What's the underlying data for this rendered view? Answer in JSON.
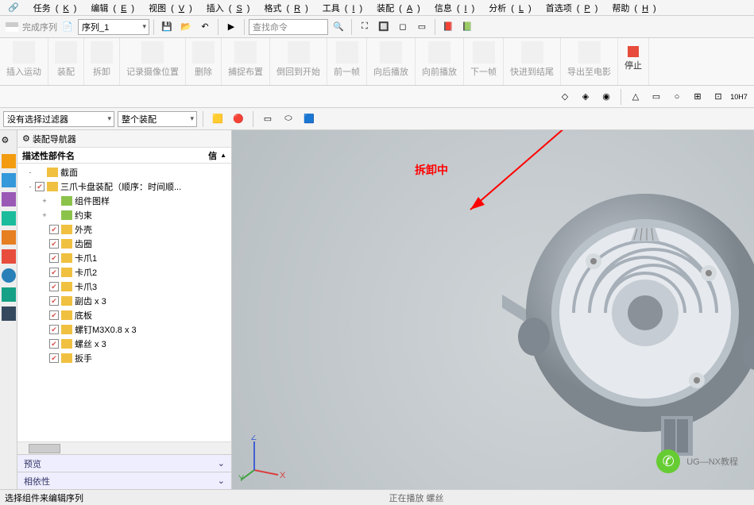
{
  "menu": {
    "items": [
      {
        "label": "任务",
        "key": "K"
      },
      {
        "label": "编辑",
        "key": "E"
      },
      {
        "label": "视图",
        "key": "V"
      },
      {
        "label": "插入",
        "key": "S"
      },
      {
        "label": "格式",
        "key": "R"
      },
      {
        "label": "工具",
        "key": "I"
      },
      {
        "label": "装配",
        "key": "A"
      },
      {
        "label": "信息",
        "key": "I"
      },
      {
        "label": "分析",
        "key": "L"
      },
      {
        "label": "首选项",
        "key": "P"
      },
      {
        "label": "帮助",
        "key": "H"
      }
    ]
  },
  "toolbar1": {
    "complete_seq": "完成序列",
    "sequence_combo": "序列_1",
    "search_placeholder": "查找命令"
  },
  "ribbon": {
    "groups": [
      {
        "label": "插入运动"
      },
      {
        "label": "装配"
      },
      {
        "label": "拆卸"
      },
      {
        "label": "记录摄像位置"
      },
      {
        "label": "删除"
      },
      {
        "label": "捕捉布置"
      },
      {
        "label": "倒回到开始"
      },
      {
        "label": "前一帧"
      },
      {
        "label": "向后播放"
      },
      {
        "label": "向前播放"
      },
      {
        "label": "下一帧"
      },
      {
        "label": "快进到结尾"
      },
      {
        "label": "导出至电影"
      },
      {
        "label": "停止"
      }
    ]
  },
  "toolbar3": {
    "filter_combo": "没有选择过滤器",
    "scope_combo": "整个装配"
  },
  "navigator": {
    "title": "装配导航器",
    "header": "描述性部件名",
    "header_right": "信",
    "nodes": [
      {
        "indent": 0,
        "exp": "-",
        "chk": false,
        "icon": "y",
        "label": "截面"
      },
      {
        "indent": 0,
        "exp": "-",
        "chk": true,
        "icon": "y",
        "label": "三爪卡盘装配（顺序：时间顺..."
      },
      {
        "indent": 1,
        "exp": "+",
        "chk": false,
        "icon": "g",
        "label": "组件图样"
      },
      {
        "indent": 1,
        "exp": "+",
        "chk": false,
        "icon": "g",
        "label": "约束"
      },
      {
        "indent": 1,
        "exp": "",
        "chk": true,
        "icon": "y",
        "label": "外壳"
      },
      {
        "indent": 1,
        "exp": "",
        "chk": true,
        "icon": "y",
        "label": "齿圈"
      },
      {
        "indent": 1,
        "exp": "",
        "chk": true,
        "icon": "y",
        "label": "卡爪1"
      },
      {
        "indent": 1,
        "exp": "",
        "chk": true,
        "icon": "y",
        "label": "卡爪2"
      },
      {
        "indent": 1,
        "exp": "",
        "chk": true,
        "icon": "y",
        "label": "卡爪3"
      },
      {
        "indent": 1,
        "exp": "",
        "chk": true,
        "icon": "y",
        "label": "副齿 x 3"
      },
      {
        "indent": 1,
        "exp": "",
        "chk": true,
        "icon": "y",
        "label": "底板"
      },
      {
        "indent": 1,
        "exp": "",
        "chk": true,
        "icon": "y",
        "label": "螺钉M3X0.8 x 3"
      },
      {
        "indent": 1,
        "exp": "",
        "chk": true,
        "icon": "y",
        "label": "螺丝 x 3"
      },
      {
        "indent": 1,
        "exp": "",
        "chk": true,
        "icon": "y",
        "label": "扳手"
      }
    ],
    "preview": "预览",
    "dependency": "相依性"
  },
  "viewport": {
    "annotation": "拆卸中",
    "csys": {
      "x": "X",
      "y": "Y",
      "z": "Z"
    },
    "colors": {
      "annotation": "#ff0000",
      "chuck_body": "#9aa3ac",
      "chuck_spiral": "#dfe3e7",
      "chuck_screw": "#c9d0d6",
      "x_axis": "#d94040",
      "y_axis": "#40a040",
      "z_axis": "#4060d0"
    }
  },
  "watermark": {
    "text": "UG—NX教程"
  },
  "statusbar": {
    "hint": "选择组件来编辑序列",
    "center": "正在播放 螺丝"
  }
}
